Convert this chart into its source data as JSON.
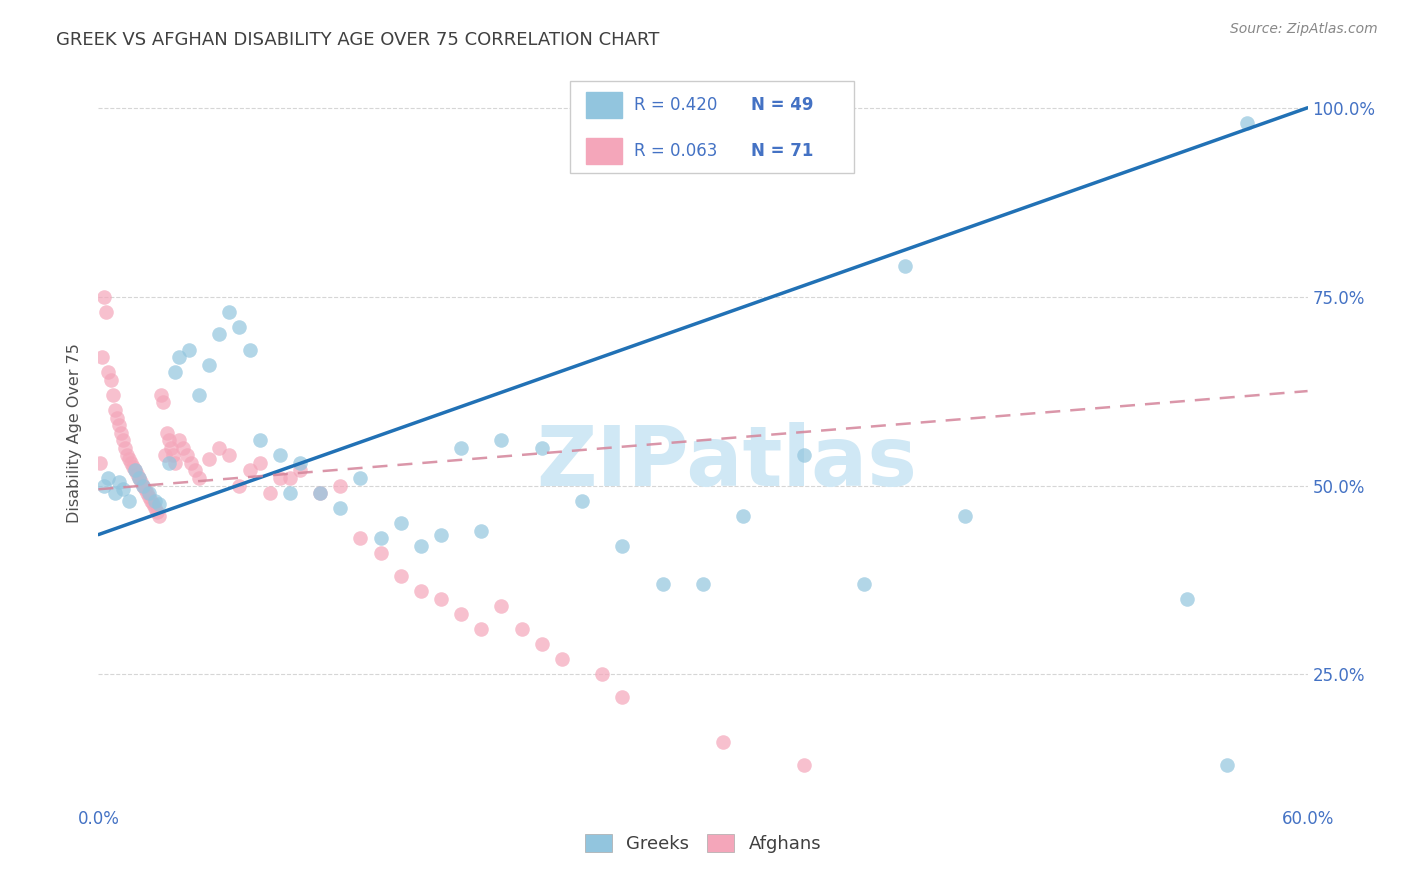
{
  "title": "GREEK VS AFGHAN DISABILITY AGE OVER 75 CORRELATION CHART",
  "source": "Source: ZipAtlas.com",
  "ylabel_label": "Disability Age Over 75",
  "legend_greek": "Greeks",
  "legend_afghan": "Afghans",
  "R_greek": 0.42,
  "N_greek": 49,
  "R_afghan": 0.063,
  "N_afghan": 71,
  "greek_color": "#92C5DE",
  "afghan_color": "#F4A6BA",
  "greek_line_color": "#2171B5",
  "afghan_line_color": "#D4849A",
  "r_n_color": "#4472C4",
  "axis_label_color": "#4472C4",
  "title_color": "#404040",
  "grid_color": "#CCCCCC",
  "background_color": "#FFFFFF",
  "xlim": [
    0.0,
    0.6
  ],
  "ylim": [
    0.08,
    1.06
  ],
  "x_ticks": [
    0.0,
    0.06,
    0.12,
    0.18,
    0.24,
    0.3,
    0.36,
    0.42,
    0.48,
    0.54,
    0.6
  ],
  "y_ticks": [
    0.25,
    0.5,
    0.75,
    1.0
  ],
  "greek_x": [
    0.003,
    0.005,
    0.008,
    0.01,
    0.012,
    0.015,
    0.018,
    0.02,
    0.022,
    0.025,
    0.028,
    0.03,
    0.035,
    0.038,
    0.04,
    0.045,
    0.05,
    0.055,
    0.06,
    0.065,
    0.07,
    0.075,
    0.08,
    0.09,
    0.095,
    0.1,
    0.11,
    0.12,
    0.13,
    0.14,
    0.15,
    0.16,
    0.17,
    0.18,
    0.19,
    0.2,
    0.22,
    0.24,
    0.26,
    0.28,
    0.3,
    0.32,
    0.35,
    0.38,
    0.4,
    0.43,
    0.54,
    0.56,
    0.57
  ],
  "greek_y": [
    0.5,
    0.51,
    0.49,
    0.505,
    0.495,
    0.48,
    0.52,
    0.51,
    0.5,
    0.49,
    0.48,
    0.475,
    0.53,
    0.65,
    0.67,
    0.68,
    0.62,
    0.66,
    0.7,
    0.73,
    0.71,
    0.68,
    0.56,
    0.54,
    0.49,
    0.53,
    0.49,
    0.47,
    0.51,
    0.43,
    0.45,
    0.42,
    0.435,
    0.55,
    0.44,
    0.56,
    0.55,
    0.48,
    0.42,
    0.37,
    0.37,
    0.46,
    0.54,
    0.37,
    0.79,
    0.46,
    0.35,
    0.13,
    0.98
  ],
  "afghan_x": [
    0.001,
    0.002,
    0.003,
    0.004,
    0.005,
    0.006,
    0.007,
    0.008,
    0.009,
    0.01,
    0.011,
    0.012,
    0.013,
    0.014,
    0.015,
    0.016,
    0.017,
    0.018,
    0.019,
    0.02,
    0.021,
    0.022,
    0.023,
    0.024,
    0.025,
    0.026,
    0.027,
    0.028,
    0.029,
    0.03,
    0.031,
    0.032,
    0.033,
    0.034,
    0.035,
    0.036,
    0.037,
    0.038,
    0.04,
    0.042,
    0.044,
    0.046,
    0.048,
    0.05,
    0.055,
    0.06,
    0.065,
    0.07,
    0.075,
    0.08,
    0.085,
    0.09,
    0.095,
    0.1,
    0.11,
    0.12,
    0.13,
    0.14,
    0.15,
    0.16,
    0.17,
    0.18,
    0.19,
    0.2,
    0.21,
    0.22,
    0.23,
    0.25,
    0.26,
    0.31,
    0.35
  ],
  "afghan_y": [
    0.53,
    0.67,
    0.75,
    0.73,
    0.65,
    0.64,
    0.62,
    0.6,
    0.59,
    0.58,
    0.57,
    0.56,
    0.55,
    0.54,
    0.535,
    0.53,
    0.525,
    0.52,
    0.515,
    0.51,
    0.505,
    0.5,
    0.495,
    0.49,
    0.485,
    0.48,
    0.475,
    0.47,
    0.465,
    0.46,
    0.62,
    0.61,
    0.54,
    0.57,
    0.56,
    0.55,
    0.54,
    0.53,
    0.56,
    0.55,
    0.54,
    0.53,
    0.52,
    0.51,
    0.535,
    0.55,
    0.54,
    0.5,
    0.52,
    0.53,
    0.49,
    0.51,
    0.51,
    0.52,
    0.49,
    0.5,
    0.43,
    0.41,
    0.38,
    0.36,
    0.35,
    0.33,
    0.31,
    0.34,
    0.31,
    0.29,
    0.27,
    0.25,
    0.22,
    0.16,
    0.13
  ],
  "watermark": "ZIPatlas",
  "watermark_color": "#D0E8F5"
}
